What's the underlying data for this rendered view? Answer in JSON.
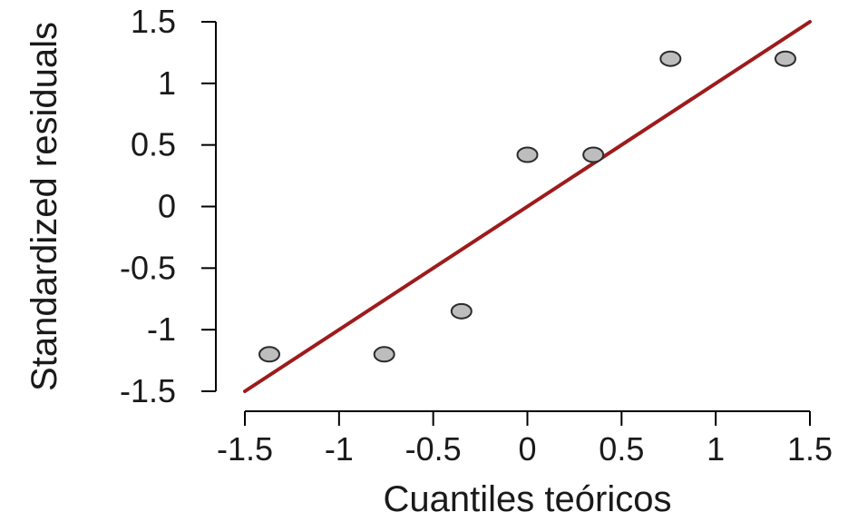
{
  "chart_data": {
    "type": "scatter",
    "title": "",
    "xlabel": "Cuantiles teóricos",
    "ylabel": "Standardized residuals",
    "xlim": [
      -1.5,
      1.5
    ],
    "ylim": [
      -1.5,
      1.5
    ],
    "x_ticks": [
      -1.5,
      -1,
      -0.5,
      0,
      0.5,
      1,
      1.5
    ],
    "x_tick_labels": [
      "-1.5",
      "-1",
      "-0.5",
      "0",
      "0.5",
      "1",
      "1.5"
    ],
    "y_ticks": [
      -1.5,
      -1,
      -0.5,
      0,
      0.5,
      1,
      1.5
    ],
    "y_tick_labels": [
      "-1.5",
      "-1",
      "-0.5",
      "0",
      "0.5",
      "1",
      "1.5"
    ],
    "grid": false,
    "points": [
      {
        "x": -1.37,
        "y": -1.2
      },
      {
        "x": -0.76,
        "y": -1.2
      },
      {
        "x": -0.35,
        "y": -0.85
      },
      {
        "x": 0.0,
        "y": 0.42
      },
      {
        "x": 0.35,
        "y": 0.42
      },
      {
        "x": 0.76,
        "y": 1.2
      },
      {
        "x": 1.37,
        "y": 1.2
      }
    ],
    "reference_line": {
      "x": [
        -1.5,
        1.5
      ],
      "y": [
        -1.5,
        1.5
      ]
    },
    "colors": {
      "point_fill": "#bdbdbd",
      "point_stroke": "#2b2b2b",
      "line": "#9e1b1b"
    }
  }
}
